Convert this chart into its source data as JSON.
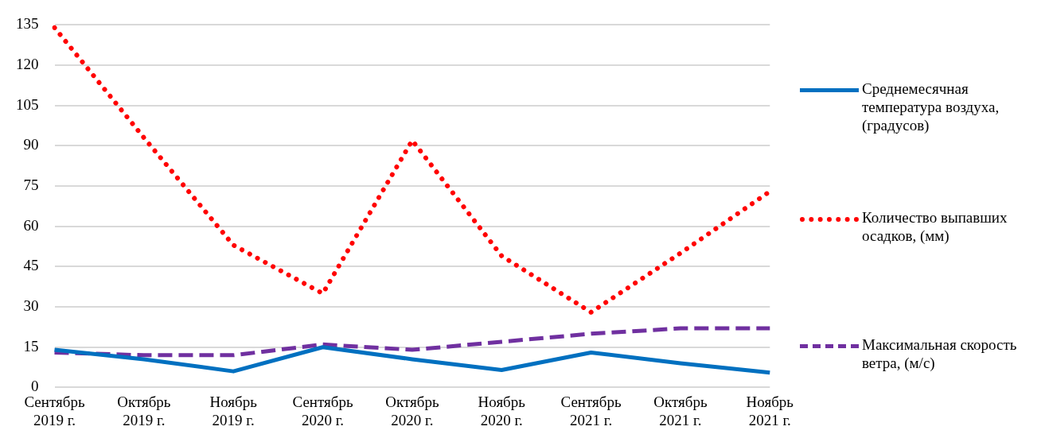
{
  "chart_data": {
    "type": "line",
    "categories": [
      "Сентябрь 2019 г.",
      "Октябрь 2019 г.",
      "Ноябрь 2019 г.",
      "Сентябрь 2020 г.",
      "Октябрь 2020 г.",
      "Ноябрь 2020 г.",
      "Сентябрь 2021 г.",
      "Октябрь 2021 г.",
      "Ноябрь 2021 г."
    ],
    "series": [
      {
        "name": "Среднемесячная температура воздуха, (градусов)",
        "color": "#0070c0",
        "line_style": "solid",
        "values": [
          14,
          10.5,
          6,
          15,
          10.5,
          6.5,
          13,
          9,
          5.5
        ]
      },
      {
        "name": "Количество выпавших осадков, (мм)",
        "color": "#ff0000",
        "line_style": "dotted",
        "values": [
          134,
          93,
          53,
          35,
          92,
          49,
          28,
          50,
          73
        ]
      },
      {
        "name": "Максимальная скорость ветра, (м/с)",
        "color": "#7030a0",
        "line_style": "dashed",
        "values": [
          13,
          12,
          12,
          16,
          14,
          17,
          20,
          22,
          22
        ]
      }
    ],
    "ylim": [
      0,
      135
    ],
    "yticks": [
      0,
      15,
      30,
      45,
      60,
      75,
      90,
      105,
      120,
      135
    ],
    "grid": "y",
    "legend": "right",
    "marker": "none"
  }
}
